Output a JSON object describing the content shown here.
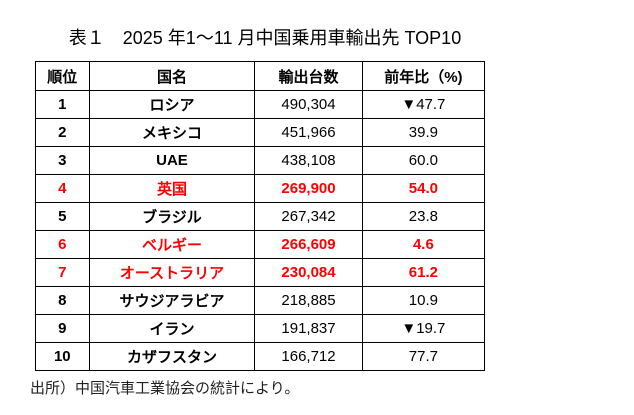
{
  "title": "表１　2025 年1～11 月中国乗用車輸出先 TOP10",
  "headers": [
    "順位",
    "国名",
    "輸出台数",
    "前年比（%)"
  ],
  "highlight_color": "#ff0000",
  "rows": [
    {
      "rank": "1",
      "country": "ロシア",
      "units": "490,304",
      "yoy": "▼47.7",
      "highlight": false
    },
    {
      "rank": "2",
      "country": "メキシコ",
      "units": "451,966",
      "yoy": "39.9",
      "highlight": false
    },
    {
      "rank": "3",
      "country": "UAE",
      "units": "438,108",
      "yoy": "60.0",
      "highlight": false
    },
    {
      "rank": "4",
      "country": "英国",
      "units": "269,900",
      "yoy": "54.0",
      "highlight": true
    },
    {
      "rank": "5",
      "country": "ブラジル",
      "units": "267,342",
      "yoy": "23.8",
      "highlight": false
    },
    {
      "rank": "6",
      "country": "ベルギー",
      "units": "266,609",
      "yoy": "4.6",
      "highlight": true
    },
    {
      "rank": "7",
      "country": "オーストラリア",
      "units": "230,084",
      "yoy": "61.2",
      "highlight": true
    },
    {
      "rank": "8",
      "country": "サウジアラビア",
      "units": "218,885",
      "yoy": "10.9",
      "highlight": false
    },
    {
      "rank": "9",
      "country": "イラン",
      "units": "191,837",
      "yoy": "▼19.7",
      "highlight": false
    },
    {
      "rank": "10",
      "country": "カザフスタン",
      "units": "166,712",
      "yoy": "77.7",
      "highlight": false
    }
  ],
  "source_note": "出所）中国汽車工業協会の統計により。"
}
